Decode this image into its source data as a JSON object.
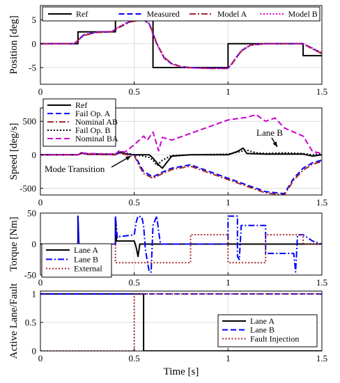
{
  "chart_data": [
    {
      "type": "line",
      "ylabel": "Position [deg]",
      "xlim": [
        0,
        1.5
      ],
      "ylim": [
        -8.5,
        8
      ],
      "yticks": [
        -5,
        0,
        5
      ],
      "xticks": [
        0,
        0.5,
        1,
        1.5
      ],
      "grid": true,
      "legend_placement": "top, horizontal",
      "series": [
        {
          "name": "Ref",
          "color": "#000000",
          "style": "solid",
          "x": [
            0,
            0.2,
            0.2,
            0.4,
            0.4,
            0.6,
            0.6,
            1.0,
            1.0,
            1.4,
            1.4,
            1.5
          ],
          "y": [
            0,
            0,
            2.5,
            2.5,
            5,
            5,
            -5,
            -5,
            0,
            0,
            -2.5,
            -2.5
          ]
        },
        {
          "name": "Measured",
          "color": "#0000ff",
          "style": "dash",
          "x": [
            0,
            0.18,
            0.23,
            0.3,
            0.38,
            0.42,
            0.48,
            0.55,
            0.58,
            0.62,
            0.66,
            0.7,
            0.75,
            0.8,
            0.9,
            1.0,
            1.02,
            1.07,
            1.12,
            1.2,
            1.3,
            1.4,
            1.44,
            1.5
          ],
          "y": [
            0,
            0,
            1.8,
            2.4,
            2.5,
            3.5,
            4.7,
            5.0,
            4.2,
            0.0,
            -3.0,
            -4.2,
            -4.8,
            -5.0,
            -5.1,
            -5.1,
            -4.2,
            -1.5,
            -0.3,
            0.0,
            0.0,
            0.0,
            -0.8,
            -2.0
          ]
        },
        {
          "name": "Model A",
          "color": "#a52a2a",
          "style": "dashdot",
          "x": [
            0,
            0.18,
            0.23,
            0.3,
            0.38,
            0.42,
            0.48,
            0.55,
            0.58,
            0.62,
            0.66,
            0.7,
            0.75,
            0.8,
            0.9,
            1.0,
            1.02,
            1.07,
            1.12,
            1.2,
            1.3,
            1.4,
            1.44,
            1.5
          ],
          "y": [
            0,
            0,
            1.7,
            2.35,
            2.5,
            3.4,
            4.6,
            5.0,
            4.3,
            0.1,
            -2.9,
            -4.1,
            -4.8,
            -5.0,
            -5.2,
            -5.2,
            -4.3,
            -1.6,
            -0.3,
            0.0,
            0.0,
            0.0,
            -0.9,
            -2.1
          ]
        },
        {
          "name": "Model B",
          "color": "#cc00cc",
          "style": "dot",
          "x": [
            0,
            0.18,
            0.23,
            0.3,
            0.38,
            0.42,
            0.48,
            0.55,
            0.58,
            0.62,
            0.66,
            0.7,
            0.75,
            0.8,
            0.9,
            1.0,
            1.02,
            1.07,
            1.12,
            1.2,
            1.3,
            1.4,
            1.44,
            1.5
          ],
          "y": [
            0,
            0,
            1.9,
            2.45,
            2.6,
            3.6,
            4.8,
            5.2,
            4.1,
            -0.1,
            -3.1,
            -4.3,
            -4.9,
            -5.1,
            -5.2,
            -5.2,
            -4.1,
            -1.4,
            -0.2,
            0.0,
            0.0,
            0.0,
            -0.7,
            -1.9
          ]
        }
      ]
    },
    {
      "type": "line",
      "ylabel": "Speed [deg/s]",
      "xlim": [
        0,
        1.5
      ],
      "ylim": [
        -600,
        700
      ],
      "yticks": [
        -500,
        0,
        500
      ],
      "xticks": [
        0,
        0.5,
        1,
        1.5
      ],
      "grid": true,
      "legend_placement": "top-left",
      "annotations": [
        {
          "text": "Mode Transition",
          "x": 0.52,
          "y": -60
        },
        {
          "text": "Lane B",
          "x": 1.25,
          "y": 50
        }
      ],
      "series": [
        {
          "name": "Ref",
          "color": "#000000",
          "style": "solid",
          "x": [
            0,
            0.2,
            0.22,
            0.25,
            0.4,
            0.42,
            0.45,
            0.5,
            0.55,
            0.58,
            0.6,
            0.63,
            0.65,
            0.7,
            0.8,
            0.9,
            1.0,
            1.05,
            1.08,
            1.1,
            1.2,
            1.3,
            1.4,
            1.45,
            1.5
          ],
          "y": [
            0,
            0,
            30,
            10,
            5,
            40,
            15,
            0,
            0,
            0,
            -50,
            -150,
            -200,
            -20,
            0,
            0,
            0,
            50,
            100,
            20,
            10,
            10,
            10,
            -20,
            0
          ]
        },
        {
          "name": "Fail Op. A",
          "color": "#0000ff",
          "style": "dash",
          "x": [
            0,
            0.2,
            0.22,
            0.25,
            0.4,
            0.42,
            0.45,
            0.5,
            0.52,
            0.55,
            0.6,
            0.65,
            0.7,
            0.8,
            0.9,
            1.0,
            1.1,
            1.2,
            1.3,
            1.35,
            1.4,
            1.45,
            1.5
          ],
          "y": [
            0,
            0,
            25,
            10,
            5,
            30,
            10,
            0,
            -100,
            -250,
            -330,
            -260,
            -200,
            -150,
            -250,
            -350,
            -450,
            -550,
            -580,
            -350,
            -200,
            -120,
            -80
          ]
        },
        {
          "name": "Nominal AB",
          "color": "#a52a2a",
          "style": "dashdot",
          "x": [
            0,
            0.2,
            0.22,
            0.25,
            0.4,
            0.42,
            0.45,
            0.5,
            0.52,
            0.55,
            0.6,
            0.65,
            0.7,
            0.8,
            0.9,
            1.0,
            1.1,
            1.2,
            1.3,
            1.35,
            1.4,
            1.45,
            1.5
          ],
          "y": [
            0,
            0,
            20,
            5,
            0,
            25,
            5,
            -10,
            -130,
            -280,
            -350,
            -280,
            -220,
            -170,
            -270,
            -370,
            -470,
            -570,
            -600,
            -380,
            -230,
            -140,
            -100
          ]
        },
        {
          "name": "Fail Op. B",
          "color": "#000000",
          "style": "dot",
          "x": [
            0,
            0.2,
            0.22,
            0.25,
            0.4,
            0.42,
            0.45,
            0.5,
            0.55,
            0.58,
            0.6,
            0.62,
            0.65,
            0.7,
            0.8,
            0.9,
            1.0,
            1.05,
            1.1,
            1.15,
            1.2,
            1.3,
            1.4,
            1.45,
            1.5
          ],
          "y": [
            0,
            0,
            30,
            15,
            10,
            50,
            30,
            0,
            -20,
            -40,
            -80,
            -160,
            -80,
            -10,
            0,
            5,
            10,
            40,
            70,
            30,
            20,
            30,
            20,
            0,
            20
          ]
        },
        {
          "name": "Nominal BA",
          "color": "#cc00cc",
          "style": "dash",
          "x": [
            0,
            0.2,
            0.22,
            0.25,
            0.4,
            0.42,
            0.45,
            0.5,
            0.55,
            0.57,
            0.6,
            0.63,
            0.65,
            0.7,
            0.8,
            0.9,
            1.0,
            1.1,
            1.15,
            1.2,
            1.25,
            1.3,
            1.4,
            1.45,
            1.5
          ],
          "y": [
            0,
            0,
            30,
            20,
            10,
            60,
            40,
            150,
            280,
            220,
            340,
            60,
            260,
            220,
            320,
            420,
            520,
            560,
            600,
            500,
            550,
            400,
            280,
            50,
            20
          ]
        }
      ]
    },
    {
      "type": "line",
      "ylabel": "Torque [Nm]",
      "xlim": [
        0,
        1.5
      ],
      "ylim": [
        -50,
        50
      ],
      "yticks": [
        -50,
        0,
        50
      ],
      "xticks": [
        0,
        0.5,
        1,
        1.5
      ],
      "grid": true,
      "legend_placement": "bottom-left",
      "series": [
        {
          "name": "Lane A",
          "color": "#000000",
          "style": "solid",
          "x": [
            0,
            0.2,
            0.2,
            0.205,
            0.21,
            0.215,
            0.22,
            0.4,
            0.4,
            0.405,
            0.41,
            0.42,
            0.5,
            0.51,
            0.52,
            0.53,
            0.55,
            0.55,
            0.56,
            1.5
          ],
          "y": [
            0,
            0,
            45,
            0,
            -5,
            -2,
            0,
            0,
            42,
            5,
            5,
            5,
            5,
            -5,
            -20,
            0,
            0,
            0,
            0,
            0
          ]
        },
        {
          "name": "Lane B",
          "color": "#0000ff",
          "style": "dashdot",
          "x": [
            0,
            0.2,
            0.2,
            0.205,
            0.21,
            0.22,
            0.25,
            0.4,
            0.4,
            0.41,
            0.42,
            0.45,
            0.5,
            0.51,
            0.52,
            0.54,
            0.55,
            0.56,
            0.58,
            0.59,
            0.6,
            0.62,
            0.63,
            0.64,
            0.65,
            0.66,
            0.67,
            1.0,
            1.0,
            1.05,
            1.05,
            1.06,
            1.07,
            1.08,
            1.1,
            1.1,
            1.2,
            1.2,
            1.35,
            1.35,
            1.36,
            1.37,
            1.4,
            1.45,
            1.5
          ],
          "y": [
            0,
            0,
            45,
            -5,
            -3,
            -1,
            0,
            0,
            45,
            10,
            12,
            13,
            15,
            35,
            45,
            44,
            30,
            -10,
            -45,
            -45,
            30,
            45,
            20,
            0,
            0,
            0,
            0,
            0,
            45,
            45,
            -20,
            -25,
            30,
            30,
            30,
            30,
            30,
            -15,
            -15,
            -15,
            -45,
            15,
            15,
            5,
            0
          ]
        },
        {
          "name": "External",
          "color": "#a52a2a",
          "style": "dot",
          "x": [
            0,
            0.4,
            0.4,
            0.55,
            0.55,
            0.6,
            0.6,
            0.8,
            0.8,
            1.0,
            1.0,
            1.2,
            1.2,
            1.4,
            1.4,
            1.5
          ],
          "y": [
            0,
            0,
            -30,
            -30,
            -30,
            -30,
            -30,
            -30,
            15,
            15,
            -30,
            -30,
            15,
            15,
            0,
            0
          ]
        }
      ]
    },
    {
      "type": "line",
      "xlabel": "Time [s]",
      "ylabel": "Active Lane/Fault",
      "xlim": [
        0,
        1.5
      ],
      "ylim": [
        0,
        1.05
      ],
      "yticks": [
        0,
        0.5,
        1
      ],
      "xticks": [
        0,
        0.5,
        1,
        1.5
      ],
      "grid": true,
      "legend_placement": "bottom-right",
      "series": [
        {
          "name": "Lane A",
          "color": "#000000",
          "style": "solid",
          "x": [
            0,
            0.55,
            0.55,
            1.5
          ],
          "y": [
            1,
            1,
            0,
            0
          ]
        },
        {
          "name": "Lane B",
          "color": "#0000ff",
          "style": "dash",
          "x": [
            0,
            1.5
          ],
          "y": [
            1,
            1
          ]
        },
        {
          "name": "Fault Injection",
          "color": "#a52a2a",
          "style": "dot",
          "x": [
            0,
            0.5,
            0.5,
            1.5
          ],
          "y": [
            0,
            0,
            1,
            1
          ]
        }
      ]
    }
  ]
}
